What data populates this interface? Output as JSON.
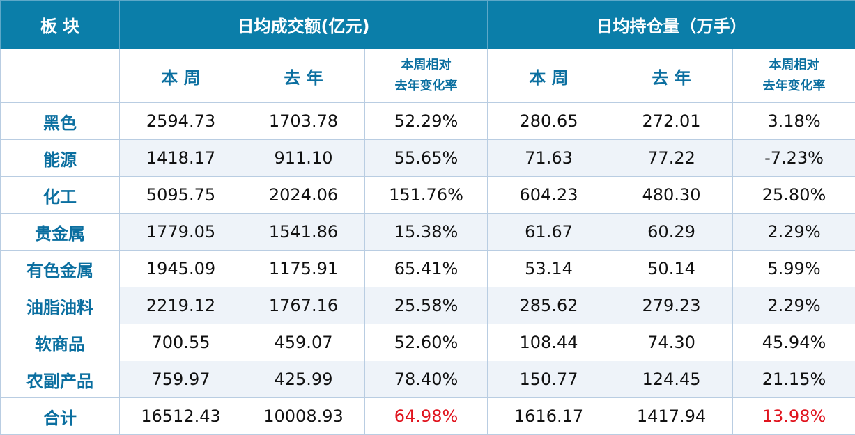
{
  "header": {
    "sector": "板 块",
    "turnover_group": "日均成交额(亿元)",
    "oi_group": "日均持仓量（万手）"
  },
  "subheader": {
    "this_week": "本 周",
    "last_year": "去 年",
    "change_line1": "本周相对",
    "change_line2": "去年变化率"
  },
  "rows": [
    {
      "sector": "黑色",
      "t_week": "2594.73",
      "t_year": "1703.78",
      "t_chg": "52.29%",
      "o_week": "280.65",
      "o_year": "272.01",
      "o_chg": "3.18%"
    },
    {
      "sector": "能源",
      "t_week": "1418.17",
      "t_year": "911.10",
      "t_chg": "55.65%",
      "o_week": "71.63",
      "o_year": "77.22",
      "o_chg": "-7.23%"
    },
    {
      "sector": "化工",
      "t_week": "5095.75",
      "t_year": "2024.06",
      "t_chg": "151.76%",
      "o_week": "604.23",
      "o_year": "480.30",
      "o_chg": "25.80%"
    },
    {
      "sector": "贵金属",
      "t_week": "1779.05",
      "t_year": "1541.86",
      "t_chg": "15.38%",
      "o_week": "61.67",
      "o_year": "60.29",
      "o_chg": "2.29%"
    },
    {
      "sector": "有色金属",
      "t_week": "1945.09",
      "t_year": "1175.91",
      "t_chg": "65.41%",
      "o_week": "53.14",
      "o_year": "50.14",
      "o_chg": "5.99%"
    },
    {
      "sector": "油脂油料",
      "t_week": "2219.12",
      "t_year": "1767.16",
      "t_chg": "25.58%",
      "o_week": "285.62",
      "o_year": "279.23",
      "o_chg": "2.29%"
    },
    {
      "sector": "软商品",
      "t_week": "700.55",
      "t_year": "459.07",
      "t_chg": "52.60%",
      "o_week": "108.44",
      "o_year": "74.30",
      "o_chg": "45.94%"
    },
    {
      "sector": "农副产品",
      "t_week": "759.97",
      "t_year": "425.99",
      "t_chg": "78.40%",
      "o_week": "150.77",
      "o_year": "124.45",
      "o_chg": "21.15%"
    },
    {
      "sector": "合计",
      "t_week": "16512.43",
      "t_year": "10008.93",
      "t_chg": "64.98%",
      "o_week": "1616.17",
      "o_year": "1417.94",
      "o_chg": "13.98%"
    }
  ],
  "colors": {
    "header_bg": "#0b7ea9",
    "category_text": "#0b6fa0",
    "highlight_red": "#e0141e",
    "row_shade": "#eef3f9"
  }
}
